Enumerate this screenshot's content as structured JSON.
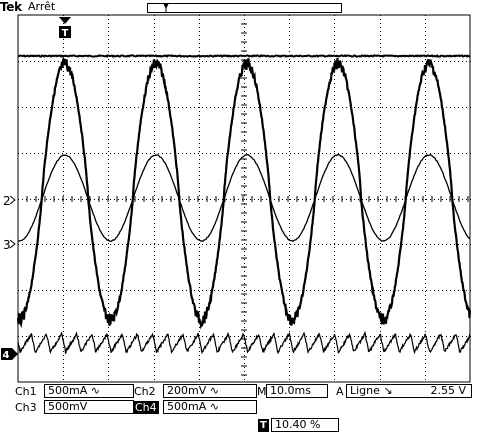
{
  "header": {
    "brand": "Tek",
    "status": "Arrêt"
  },
  "channels": {
    "ch1": {
      "label": "Ch1",
      "value": "500mA",
      "coupling_icon": "ac-coupling-icon"
    },
    "ch2": {
      "label": "Ch2",
      "value": "200mV",
      "coupling_icon": "ac-coupling-icon"
    },
    "ch3": {
      "label": "Ch3",
      "value": "500mV"
    },
    "ch4": {
      "label": "Ch4",
      "value": "500mA",
      "coupling_icon": "ac-coupling-icon"
    }
  },
  "timebase": {
    "prefix": "M",
    "value": "10.0ms"
  },
  "trigger": {
    "prefix": "A",
    "source": "Ligne",
    "slope_icon": "falling-edge-icon",
    "level": "2.55 V"
  },
  "trigger_position": {
    "value": "10.40 %"
  },
  "markers": {
    "ch2": "2",
    "ch3": "3",
    "ch4": "4",
    "trigger": "T"
  },
  "colors": {
    "trace": "#000000",
    "background": "#ffffff"
  }
}
